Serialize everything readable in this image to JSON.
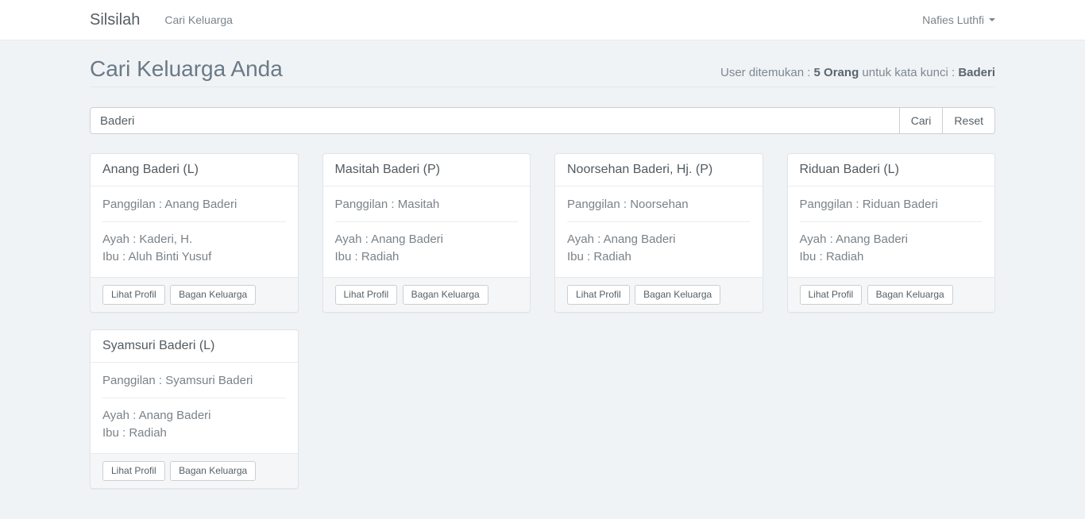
{
  "navbar": {
    "brand": "Silsilah",
    "links": [
      {
        "label": "Cari Keluarga"
      }
    ],
    "user": {
      "label": "Nafies Luthfi"
    }
  },
  "page_header": {
    "title": "Cari Keluarga Anda",
    "summary": {
      "prefix": "User ditemukan : ",
      "count": "5 Orang",
      "middle": " untuk kata kunci : ",
      "keyword": "Baderi"
    }
  },
  "search": {
    "input_value": "Baderi",
    "cari_label": "Cari",
    "reset_label": "Reset"
  },
  "actions": {
    "profile_label": "Lihat Profil",
    "chart_label": "Bagan Keluarga"
  },
  "cards": [
    {
      "title": "Anang Baderi (L)",
      "panggilan": "Panggilan : Anang Baderi",
      "ayah": "Ayah : Kaderi, H.",
      "ibu": "Ibu : Aluh Binti Yusuf"
    },
    {
      "title": "Masitah Baderi (P)",
      "panggilan": "Panggilan : Masitah",
      "ayah": "Ayah : Anang Baderi",
      "ibu": "Ibu : Radiah"
    },
    {
      "title": "Noorsehan Baderi, Hj. (P)",
      "panggilan": "Panggilan : Noorsehan",
      "ayah": "Ayah : Anang Baderi",
      "ibu": "Ibu : Radiah"
    },
    {
      "title": "Riduan Baderi (L)",
      "panggilan": "Panggilan : Riduan Baderi",
      "ayah": "Ayah : Anang Baderi",
      "ibu": "Ibu : Radiah"
    },
    {
      "title": "Syamsuri Baderi (L)",
      "panggilan": "Panggilan : Syamsuri Baderi",
      "ayah": "Ayah : Anang Baderi",
      "ibu": "Ibu : Radiah"
    }
  ],
  "colors": {
    "page_background": "#f0f3f6",
    "navbar_background": "#ffffff",
    "card_footer_background": "#f5f6f7"
  }
}
